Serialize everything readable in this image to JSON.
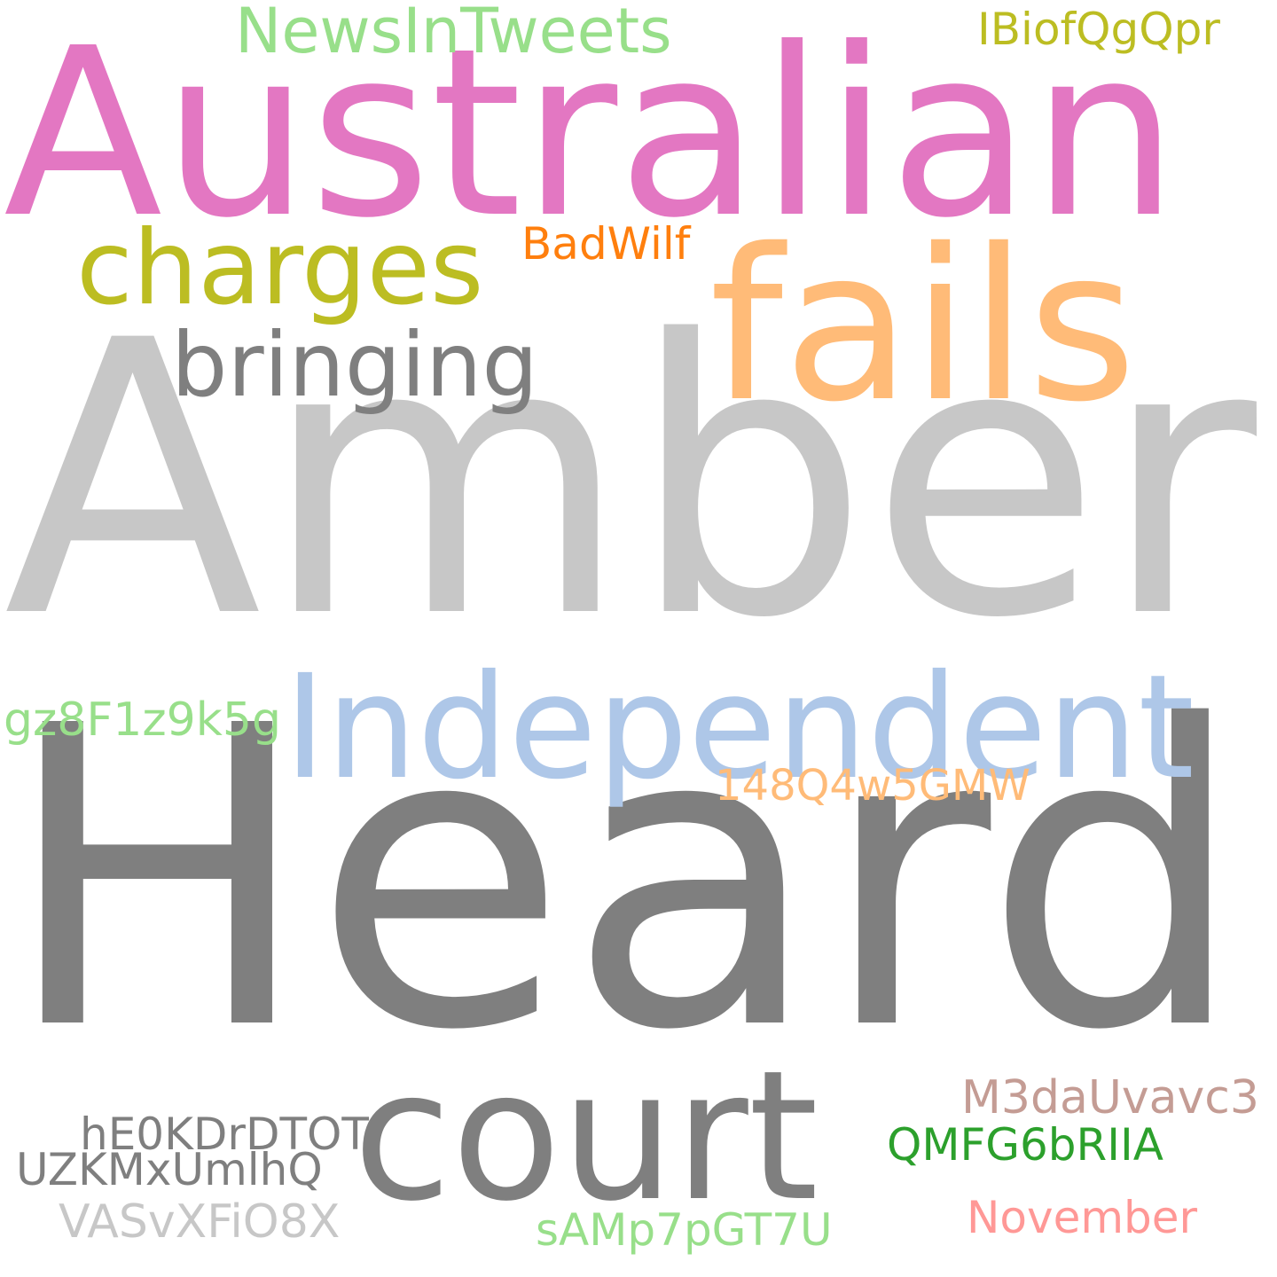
{
  "words": {
    "amber": {
      "text": "Amber",
      "color": "#c7c7c7"
    },
    "heard": {
      "text": "Heard",
      "color": "#7f7f7f"
    },
    "australian": {
      "text": "Australian",
      "color": "#e377c2"
    },
    "fails": {
      "text": "fails",
      "color": "#ffbb78"
    },
    "independent": {
      "text": "Independent",
      "color": "#aec7e8"
    },
    "court": {
      "text": "court",
      "color": "#7f7f7f"
    },
    "charges": {
      "text": "charges",
      "color": "#bcbd22"
    },
    "bringing": {
      "text": "bringing",
      "color": "#7f7f7f"
    },
    "newsintweets": {
      "text": "NewsInTweets",
      "color": "#98df8a"
    },
    "ibiofqgqpr": {
      "text": "IBiofQgQpr",
      "color": "#bcbd22"
    },
    "badwilf": {
      "text": "BadWilf",
      "color": "#ff7f0e"
    },
    "gz8": {
      "text": "gz8F1z9k5g",
      "color": "#98df8a"
    },
    "148q": {
      "text": "148Q4w5GMW",
      "color": "#ffbb78"
    },
    "m3da": {
      "text": "M3daUvavc3",
      "color": "#c49c94"
    },
    "heok": {
      "text": "hE0KDrDTOT",
      "color": "#7f7f7f"
    },
    "qmfg": {
      "text": "QMFG6bRIIA",
      "color": "#2ca02c"
    },
    "uzkm": {
      "text": "UZKMxUmlhQ",
      "color": "#7f7f7f"
    },
    "november": {
      "text": "November",
      "color": "#ff9896"
    },
    "vasv": {
      "text": "VASvXFiO8X",
      "color": "#c7c7c7"
    },
    "samp": {
      "text": "sAMp7pGT7U",
      "color": "#98df8a"
    }
  }
}
